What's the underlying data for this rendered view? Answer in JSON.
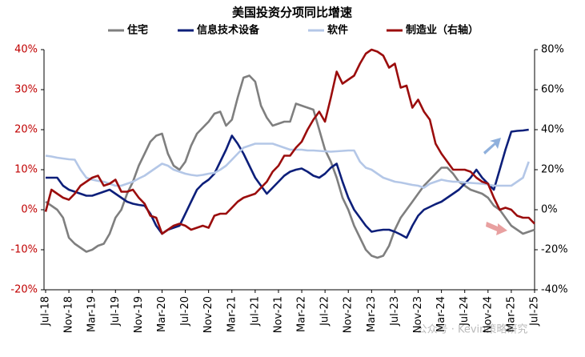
{
  "chart_data": {
    "type": "line",
    "title": "美国投资分项同比增速",
    "categories": [
      "Jul-18",
      null,
      null,
      null,
      "Nov-18",
      null,
      null,
      null,
      "Mar-19",
      null,
      null,
      null,
      "Jul-19",
      null,
      null,
      null,
      "Nov-19",
      null,
      null,
      null,
      "Mar-20",
      null,
      null,
      null,
      "Jul-20",
      null,
      null,
      null,
      "Nov-20",
      null,
      null,
      null,
      "Mar-21",
      null,
      null,
      null,
      "Jul-21",
      null,
      null,
      null,
      "Nov-21",
      null,
      null,
      null,
      "Mar-22",
      null,
      null,
      null,
      "Jul-22",
      null,
      null,
      null,
      "Nov-22",
      null,
      null,
      null,
      "Mar-23",
      null,
      null,
      null,
      "Jul-23",
      null,
      null,
      null,
      "Nov-23",
      null,
      null,
      null,
      "Mar-24",
      null,
      null,
      null,
      "Jul-24",
      null,
      null,
      null,
      "Nov-24",
      null,
      null,
      null,
      "Mar-25",
      null,
      null,
      null,
      "Jul-25"
    ],
    "series": [
      {
        "name": "住宅",
        "color": "#7f7f7f",
        "values": [
          2,
          1,
          0,
          -2,
          -7,
          -8.5,
          -9.5,
          -10.5,
          -10,
          -9,
          -8.5,
          -6,
          -2,
          0,
          4,
          7,
          11,
          14,
          17,
          18.5,
          19,
          14,
          11,
          10,
          12,
          16,
          19,
          20.5,
          22,
          24,
          24.5,
          21,
          22.5,
          28,
          33,
          33.5,
          32,
          26,
          23,
          21,
          21.5,
          22,
          22,
          26.5,
          26,
          25.5,
          25,
          20,
          15,
          12,
          8,
          3,
          0,
          -4,
          -7,
          -10,
          -11.5,
          -12,
          -11.5,
          -9,
          -5,
          -2,
          0,
          2,
          4,
          6,
          7.5,
          9,
          10.5,
          10.5,
          9,
          7,
          6,
          5,
          4.5,
          4,
          3,
          1,
          0,
          -2,
          -4,
          -5,
          -6,
          -5.5,
          -5
        ]
      },
      {
        "name": "信息技术设备",
        "color": "#0d1f7a",
        "values": [
          8,
          8,
          8,
          6,
          5,
          4.5,
          4,
          3.5,
          3.5,
          4,
          4.5,
          5,
          4,
          3,
          2,
          1.5,
          1.2,
          1,
          -1,
          -4,
          -6,
          -5,
          -4.5,
          -4,
          -1,
          2,
          5,
          6.5,
          7.5,
          9,
          12,
          15,
          18.5,
          16.5,
          14,
          11,
          8,
          6,
          4,
          5.5,
          7,
          8.5,
          9.5,
          10,
          10.3,
          9.5,
          8.5,
          8,
          9,
          10.5,
          11.5,
          7,
          3,
          0,
          -2,
          -4,
          -5.5,
          -5.2,
          -5,
          -5,
          -5.5,
          -6.2,
          -7,
          -4,
          -1.5,
          0,
          0.7,
          1.4,
          2,
          3,
          4,
          5,
          6.5,
          8,
          10,
          8,
          6.5,
          5,
          10,
          15,
          19.5,
          19.7,
          19.8,
          20,
          null
        ]
      },
      {
        "name": "软件",
        "color": "#b4c7e7",
        "values": [
          13.5,
          13.3,
          13,
          12.8,
          12.6,
          12.5,
          10,
          8,
          7.5,
          7.2,
          7,
          6.5,
          6,
          6,
          6.5,
          7,
          7.8,
          8.5,
          9.5,
          10.5,
          11.5,
          11,
          10,
          9.5,
          9,
          8.7,
          8.5,
          8.7,
          9,
          9.2,
          10,
          11,
          12.5,
          14,
          15.5,
          16,
          16.5,
          16.5,
          16.5,
          16.5,
          16,
          15.5,
          15,
          15,
          15,
          14.8,
          14.8,
          14.7,
          14.6,
          14.5,
          14.6,
          14.7,
          14.8,
          14.8,
          12,
          10.5,
          10,
          9,
          8,
          7.5,
          7,
          6.8,
          6.5,
          6.2,
          6,
          5.5,
          6.5,
          7,
          7.5,
          7.2,
          7,
          7,
          6.8,
          6.7,
          6.6,
          6.5,
          6.3,
          6,
          6,
          6,
          6,
          7,
          8,
          12,
          null
        ]
      },
      {
        "name": "制造业（右轴）",
        "color": "#9b0d0d",
        "axis": "y2",
        "values": [
          -1,
          10,
          8,
          6,
          5,
          8,
          12,
          14,
          16,
          17,
          12,
          13,
          15,
          9,
          9,
          10,
          6,
          3,
          -3,
          -4,
          -12,
          -10,
          -8,
          -7,
          -8,
          -10,
          -9,
          -8,
          -9,
          -3,
          -2,
          -2,
          1,
          4,
          6,
          7,
          8,
          11,
          14,
          19,
          22,
          27,
          27,
          31,
          34,
          40,
          45,
          49,
          44,
          56,
          69,
          63,
          65,
          67,
          73,
          78,
          80,
          79,
          77,
          71,
          73,
          61,
          62,
          51,
          55,
          49,
          45,
          33,
          28,
          24,
          20,
          20,
          20,
          19,
          16,
          14,
          13,
          6,
          0,
          1,
          0,
          -3,
          -4,
          -4,
          -7
        ]
      }
    ],
    "ylim": [
      -20,
      40
    ],
    "yticks": [
      {
        "value": -20,
        "label": "-20%"
      },
      {
        "value": -10,
        "label": "-10%"
      },
      {
        "value": 0,
        "label": "0%"
      },
      {
        "value": 10,
        "label": "10%"
      },
      {
        "value": 20,
        "label": "20%"
      },
      {
        "value": 30,
        "label": "30%"
      },
      {
        "value": 40,
        "label": "40%"
      }
    ],
    "y2lim": [
      -40,
      80
    ],
    "y2ticks": [
      {
        "value": -40,
        "label": "-40%"
      },
      {
        "value": -20,
        "label": "-20%"
      },
      {
        "value": 0,
        "label": "0%"
      },
      {
        "value": 20,
        "label": "20%"
      },
      {
        "value": 40,
        "label": "40%"
      },
      {
        "value": 60,
        "label": "60%"
      },
      {
        "value": 80,
        "label": "80%"
      }
    ],
    "grid": false,
    "legend": "top",
    "watermark": "公众号 · Kevin策略研究"
  }
}
